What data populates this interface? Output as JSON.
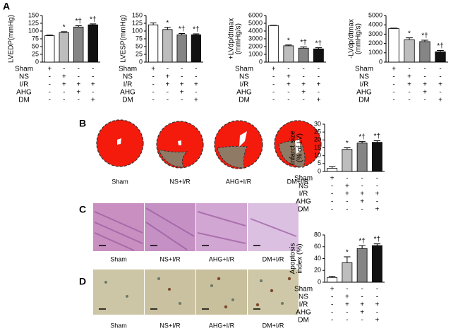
{
  "groups": [
    {
      "name": "Sham",
      "signs": [
        "+",
        "-",
        "-",
        "-"
      ]
    },
    {
      "name": "NS",
      "signs": [
        "-",
        "+",
        "-",
        "-"
      ]
    },
    {
      "name": "I/R",
      "signs": [
        "-",
        "+",
        "+",
        "+"
      ]
    },
    {
      "name": "AHG",
      "signs": [
        "-",
        "-",
        "+",
        "-"
      ]
    },
    {
      "name": "DM",
      "signs": [
        "-",
        "-",
        "-",
        "+"
      ]
    }
  ],
  "panels": [
    {
      "letter": "A"
    },
    {
      "letter": "B",
      "captions": [
        "Sham",
        "NS+I/R",
        "AHG+I/R",
        "DM+I/R"
      ]
    },
    {
      "letter": "C",
      "captions": [
        "Sham",
        "NS+I/R",
        "AHG+I/R",
        "DM+I/R"
      ]
    },
    {
      "letter": "D",
      "captions": [
        "Sham",
        "NS+I/R",
        "AHG+I/R",
        "DM+I/R"
      ]
    }
  ],
  "chart_data": [
    {
      "type": "bar",
      "ylabel": [
        "LVEDP(mmHg)"
      ],
      "values": [
        85,
        95,
        113,
        120
      ],
      "errors": [
        2,
        3,
        4,
        3
      ],
      "annotations": [
        null,
        "*",
        "*†",
        "*†"
      ],
      "colors": [
        "#ffffff",
        "#bdbdbd",
        "#858585",
        "#111111"
      ],
      "ylim": [
        0,
        150
      ],
      "yticks": [
        0,
        25,
        50,
        75,
        100,
        125,
        150
      ]
    },
    {
      "type": "bar",
      "ylabel": [
        "LVESP(mmHg)"
      ],
      "values": [
        120,
        105,
        88,
        88
      ],
      "errors": [
        6,
        7,
        4,
        3
      ],
      "annotations": [
        null,
        "*",
        "*†",
        "*†"
      ],
      "colors": [
        "#ffffff",
        "#bdbdbd",
        "#858585",
        "#111111"
      ],
      "ylim": [
        0,
        150
      ],
      "yticks": [
        0,
        25,
        50,
        75,
        100,
        125,
        150
      ]
    },
    {
      "type": "bar",
      "ylabel": [
        "+LVdp/dtmax",
        "(mmHg/s)"
      ],
      "values": [
        4700,
        2100,
        1800,
        1700
      ],
      "errors": [
        50,
        100,
        150,
        150
      ],
      "annotations": [
        null,
        "*",
        "*†",
        "*†"
      ],
      "colors": [
        "#ffffff",
        "#bdbdbd",
        "#858585",
        "#111111"
      ],
      "ylim": [
        0,
        6000
      ],
      "yticks": [
        0,
        1000,
        2000,
        3000,
        4000,
        5000,
        6000
      ]
    },
    {
      "type": "bar",
      "ylabel": [
        "-LVdp/dtmax",
        "(mmHg/s)"
      ],
      "values": [
        3600,
        2400,
        2200,
        1100
      ],
      "errors": [
        50,
        200,
        150,
        150
      ],
      "annotations": [
        null,
        "*",
        "*†",
        "*†"
      ],
      "colors": [
        "#ffffff",
        "#bdbdbd",
        "#858585",
        "#111111"
      ],
      "ylim": [
        0,
        5000
      ],
      "yticks": [
        0,
        1000,
        2000,
        3000,
        4000,
        5000
      ]
    },
    {
      "type": "bar",
      "ylabel": [
        "Infarct size",
        "(% of LV)"
      ],
      "values": [
        2,
        14,
        18,
        18.5
      ],
      "errors": [
        1,
        1,
        1,
        1
      ],
      "annotations": [
        null,
        "*",
        "*†",
        "*†"
      ],
      "colors": [
        "#ffffff",
        "#bdbdbd",
        "#858585",
        "#111111"
      ],
      "ylim": [
        0,
        30
      ],
      "yticks": [
        0,
        5,
        10,
        15,
        20,
        25,
        30
      ]
    },
    {
      "type": "bar",
      "ylabel": [
        "Apoptosis",
        "index (%)"
      ],
      "values": [
        8,
        33,
        57,
        62
      ],
      "errors": [
        2,
        10,
        5,
        3
      ],
      "annotations": [
        null,
        "*",
        "*†",
        "*†"
      ],
      "colors": [
        "#ffffff",
        "#bdbdbd",
        "#858585",
        "#111111"
      ],
      "ylim": [
        0,
        80
      ],
      "yticks": [
        0,
        20,
        40,
        60,
        80
      ]
    }
  ]
}
